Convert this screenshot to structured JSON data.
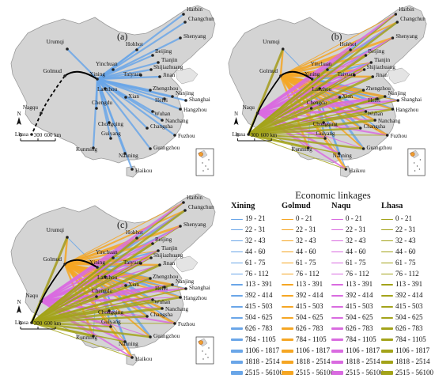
{
  "legend": {
    "title": "Economic linkages",
    "columns": [
      {
        "name": "Xining",
        "color": "#6aa6e8",
        "classes": [
          "19 - 21",
          "22 - 31",
          "32 - 43",
          "44 - 60",
          "61 - 75",
          "76 - 112",
          "113 - 391",
          "392 - 414",
          "415 - 503",
          "504 - 625",
          "626 - 783",
          "784 - 1105",
          "1106 - 1817",
          "1818 - 2514",
          "2515 - 56100"
        ]
      },
      {
        "name": "Golmud",
        "color": "#f5a623",
        "classes": [
          "0 - 21",
          "22 - 31",
          "32 - 43",
          "44 - 60",
          "61 - 75",
          "76 - 112",
          "113 - 391",
          "392 - 414",
          "415 - 503",
          "504 - 625",
          "626 - 783",
          "784 - 1105",
          "1106 - 1817",
          "1818 - 2514",
          "2515 - 56100"
        ]
      },
      {
        "name": "Naqu",
        "color": "#d96be0",
        "classes": [
          "0 - 21",
          "22 - 31",
          "32 - 43",
          "44 - 60",
          "61 - 75",
          "76 - 112",
          "113 - 391",
          "392 - 414",
          "415 - 503",
          "504 - 625",
          "626 - 783",
          "784 - 1105",
          "1106 - 1817",
          "1818 - 2514",
          "2515 - 56100"
        ]
      },
      {
        "name": "Lhasa",
        "color": "#a3a31a",
        "classes": [
          "0 - 21",
          "22 - 31",
          "32 - 43",
          "44 - 60",
          "61 - 75",
          "76 - 112",
          "113 - 391",
          "392 - 414",
          "415 - 503",
          "504 - 625",
          "626 - 783",
          "784 - 1105",
          "1106 - 1817",
          "1818 - 2514",
          "2515 - 56100"
        ]
      }
    ]
  },
  "panels": [
    {
      "label": "(a)",
      "sources": [
        "Xining"
      ]
    },
    {
      "label": "(b)",
      "sources": [
        "Xining",
        "Golmud",
        "Naqu",
        "Lhasa"
      ]
    },
    {
      "label": "(c)",
      "sources": [
        "Xining",
        "Golmud",
        "Naqu",
        "Lhasa"
      ]
    }
  ],
  "cities": [
    "Urumqi",
    "Harbin",
    "Changchun",
    "Shenyang",
    "Hohhot",
    "Beijing",
    "Tianjin",
    "Yinchuan",
    "Shijiazhuang",
    "Taiyuan",
    "Jinan",
    "Xining",
    "Lanzhou",
    "Zhengzhou",
    "Golmud",
    "Xi'an",
    "Hefei",
    "Nanjing",
    "Shanghai",
    "Hangzhou",
    "Chengdu",
    "Wuhan",
    "Nagqu",
    "Nanchang",
    "Chongqing",
    "Changsha",
    "Lhasa",
    "Fuzhou",
    "Guiyang",
    "Kunming",
    "Nanning",
    "Guangzhou",
    "Haikou"
  ],
  "city_label_overrides": {
    "a": {
      "Nagqu": "Nagqu",
      "Xi'an": "Xian"
    },
    "b": {
      "Nagqu": "Naqu",
      "Xi'an": "Xian"
    },
    "c": {
      "Nagqu": "Naqu",
      "Xi'an": "Xian"
    }
  },
  "scale_bar": {
    "labels": [
      "0",
      "300",
      "600 km"
    ]
  },
  "north_arrow": {
    "label": "N"
  },
  "colors": {
    "land": "#d4d4d4",
    "land_border": "#9a9a9a",
    "railway": "#000000",
    "planned": "#000000",
    "water": "#ffffff"
  }
}
